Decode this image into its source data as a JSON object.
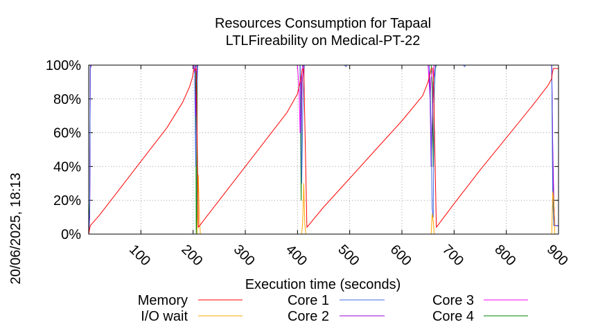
{
  "stamp": "20/06/2025, 18:13",
  "chart_data": {
    "type": "line",
    "title": [
      "Resources Consumption for Tapaal",
      "LTLFireability on Medical-PT-22"
    ],
    "xlabel": "Execution time (seconds)",
    "ylabel": "",
    "xlim": [
      0,
      900
    ],
    "ylim": [
      0,
      100
    ],
    "x_ticks": [
      100,
      200,
      300,
      400,
      500,
      600,
      700,
      800,
      900
    ],
    "y_ticks": [
      0,
      20,
      40,
      60,
      80,
      100
    ],
    "y_tick_labels": [
      "0%",
      "20%",
      "40%",
      "60%",
      "80%",
      "100%"
    ],
    "grid": true,
    "legend_position": "bottom",
    "series": [
      {
        "name": "Memory",
        "color": "#ff0000",
        "x": [
          0,
          3,
          20,
          50,
          100,
          150,
          180,
          193,
          199,
          201,
          206,
          210,
          250,
          300,
          350,
          380,
          400,
          407,
          409,
          412,
          418,
          450,
          500,
          550,
          600,
          640,
          650,
          654,
          656,
          660,
          666,
          700,
          750,
          800,
          850,
          880,
          887,
          888,
          890,
          900
        ],
        "y": [
          0,
          5,
          11,
          23,
          43,
          63,
          78,
          87,
          93,
          97,
          98,
          4,
          20,
          40,
          60,
          72,
          83,
          93,
          97,
          98,
          4,
          16,
          33,
          50,
          67,
          82,
          90,
          95,
          98,
          98,
          4,
          18,
          38,
          57,
          76,
          88,
          92,
          95,
          98,
          98
        ]
      },
      {
        "name": "I/O wait",
        "color": "#ffa500",
        "x": [
          0,
          208,
          210,
          212,
          214,
          408,
          410,
          412,
          414,
          416,
          656,
          658,
          660,
          662,
          887,
          889,
          891,
          893,
          900
        ],
        "y": [
          0,
          0,
          35,
          10,
          0,
          0,
          8,
          30,
          6,
          0,
          0,
          12,
          8,
          0,
          0,
          25,
          20,
          0,
          0
        ]
      },
      {
        "name": "Core 1",
        "color": "#4169e1",
        "x": [
          0,
          2,
          3,
          5,
          203,
          205,
          207,
          209,
          405,
          408,
          410,
          413,
          490,
          493,
          495,
          652,
          654,
          656,
          658,
          660,
          662,
          664,
          718,
          720,
          722,
          887,
          889,
          891,
          893,
          900
        ],
        "y": [
          0,
          15,
          100,
          100,
          100,
          40,
          85,
          100,
          100,
          30,
          70,
          100,
          100,
          99,
          100,
          100,
          90,
          60,
          15,
          10,
          85,
          100,
          100,
          99,
          100,
          100,
          20,
          5,
          5,
          5
        ]
      },
      {
        "name": "Core 2",
        "color": "#9400d3",
        "x": [
          0,
          2,
          3,
          5,
          203,
          205,
          207,
          209,
          405,
          407,
          409,
          412,
          652,
          654,
          656,
          660,
          663,
          665,
          887,
          889,
          891,
          893,
          900
        ],
        "y": [
          0,
          10,
          98,
          100,
          100,
          70,
          95,
          100,
          100,
          60,
          90,
          100,
          100,
          80,
          40,
          90,
          98,
          100,
          100,
          50,
          20,
          5,
          5
        ]
      },
      {
        "name": "Core 3",
        "color": "#ff00ff",
        "x": [
          0,
          2,
          3,
          5,
          201,
          203,
          205,
          207,
          400,
          403,
          405,
          407,
          409,
          411,
          650,
          652,
          654,
          656,
          659,
          662,
          887,
          889,
          891,
          893,
          900
        ],
        "y": [
          0,
          12,
          98,
          100,
          100,
          95,
          98,
          100,
          100,
          85,
          60,
          90,
          98,
          100,
          100,
          90,
          80,
          92,
          97,
          100,
          100,
          50,
          20,
          5,
          5
        ]
      },
      {
        "name": "Core 4",
        "color": "#008000",
        "x": [
          0,
          2,
          3,
          5,
          205,
          206,
          207,
          208,
          210,
          405,
          407,
          408,
          410,
          656,
          658,
          660,
          662,
          664,
          666,
          887,
          889,
          891,
          893,
          900
        ],
        "y": [
          0,
          20,
          100,
          100,
          100,
          0,
          10,
          100,
          100,
          100,
          20,
          95,
          100,
          100,
          90,
          40,
          85,
          98,
          100,
          100,
          30,
          5,
          5,
          5
        ]
      }
    ]
  }
}
